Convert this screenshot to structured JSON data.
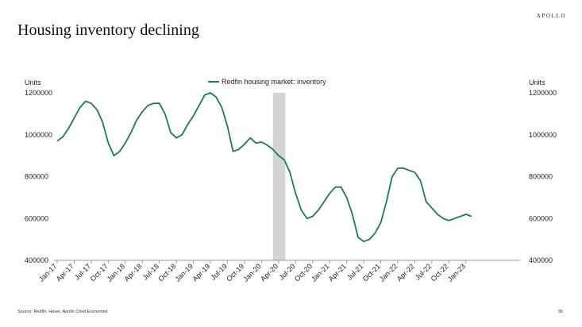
{
  "header": {
    "brand": "APOLLO",
    "title": "Housing inventory declining"
  },
  "footer": {
    "source": "Source: Redfin, Haver, Apollo Chief Economist",
    "page_number": "36"
  },
  "colors": {
    "line": "#1a7a5e",
    "shade": "#d4d4d4",
    "axis": "#999999",
    "text": "#222222"
  },
  "chart_data": {
    "type": "line",
    "title": "Housing inventory declining",
    "ylabel_left": "Units",
    "ylabel_right": "Units",
    "ylim": [
      400000,
      1200000
    ],
    "yticks": [
      "1200000",
      "1000000",
      "800000",
      "600000",
      "400000"
    ],
    "grid": false,
    "legend": {
      "position": "top-center",
      "entries": [
        "Redfin housing market: inventory"
      ]
    },
    "shaded_region": {
      "from": "2020-03",
      "to": "2020-04"
    },
    "xtick_labels": [
      "Jan-17",
      "Apr-17",
      "Jul-17",
      "Oct-17",
      "Jan-18",
      "Apr-18",
      "Jul-18",
      "Oct-18",
      "Jan-19",
      "Apr-19",
      "Jul-19",
      "Oct-19",
      "Jan-20",
      "Apr-20",
      "Jul-20",
      "Oct-20",
      "Jan-21",
      "Apr-21",
      "Jul-21",
      "Oct-21",
      "Jan-22",
      "Apr-22",
      "Jul-22",
      "Oct-22",
      "Jan-23"
    ],
    "series": [
      {
        "name": "Redfin housing market: inventory",
        "x": [
          "2017-01",
          "2017-02",
          "2017-03",
          "2017-04",
          "2017-05",
          "2017-06",
          "2017-07",
          "2017-08",
          "2017-09",
          "2017-10",
          "2017-11",
          "2017-12",
          "2018-01",
          "2018-02",
          "2018-03",
          "2018-04",
          "2018-05",
          "2018-06",
          "2018-07",
          "2018-08",
          "2018-09",
          "2018-10",
          "2018-11",
          "2018-12",
          "2019-01",
          "2019-02",
          "2019-03",
          "2019-04",
          "2019-05",
          "2019-06",
          "2019-07",
          "2019-08",
          "2019-09",
          "2019-10",
          "2019-11",
          "2019-12",
          "2020-01",
          "2020-02",
          "2020-03",
          "2020-04",
          "2020-05",
          "2020-06",
          "2020-07",
          "2020-08",
          "2020-09",
          "2020-10",
          "2020-11",
          "2020-12",
          "2021-01",
          "2021-02",
          "2021-03",
          "2021-04",
          "2021-05",
          "2021-06",
          "2021-07",
          "2021-08",
          "2021-09",
          "2021-10",
          "2021-11",
          "2021-12",
          "2022-01",
          "2022-02",
          "2022-03",
          "2022-04",
          "2022-05",
          "2022-06",
          "2022-07",
          "2022-08",
          "2022-09",
          "2022-10",
          "2022-11",
          "2022-12",
          "2023-01",
          "2023-02"
        ],
        "values": [
          970000,
          990000,
          1030000,
          1080000,
          1130000,
          1160000,
          1150000,
          1120000,
          1060000,
          960000,
          900000,
          920000,
          960000,
          1010000,
          1070000,
          1110000,
          1140000,
          1150000,
          1150000,
          1100000,
          1010000,
          985000,
          1000000,
          1050000,
          1090000,
          1140000,
          1190000,
          1200000,
          1180000,
          1130000,
          1040000,
          920000,
          930000,
          955000,
          985000,
          960000,
          965000,
          950000,
          930000,
          900000,
          880000,
          820000,
          720000,
          640000,
          600000,
          610000,
          640000,
          680000,
          720000,
          750000,
          750000,
          700000,
          620000,
          510000,
          490000,
          500000,
          530000,
          580000,
          680000,
          800000,
          840000,
          840000,
          830000,
          820000,
          780000,
          680000,
          650000,
          620000,
          600000,
          590000,
          600000,
          610000,
          620000,
          610000
        ]
      }
    ]
  }
}
